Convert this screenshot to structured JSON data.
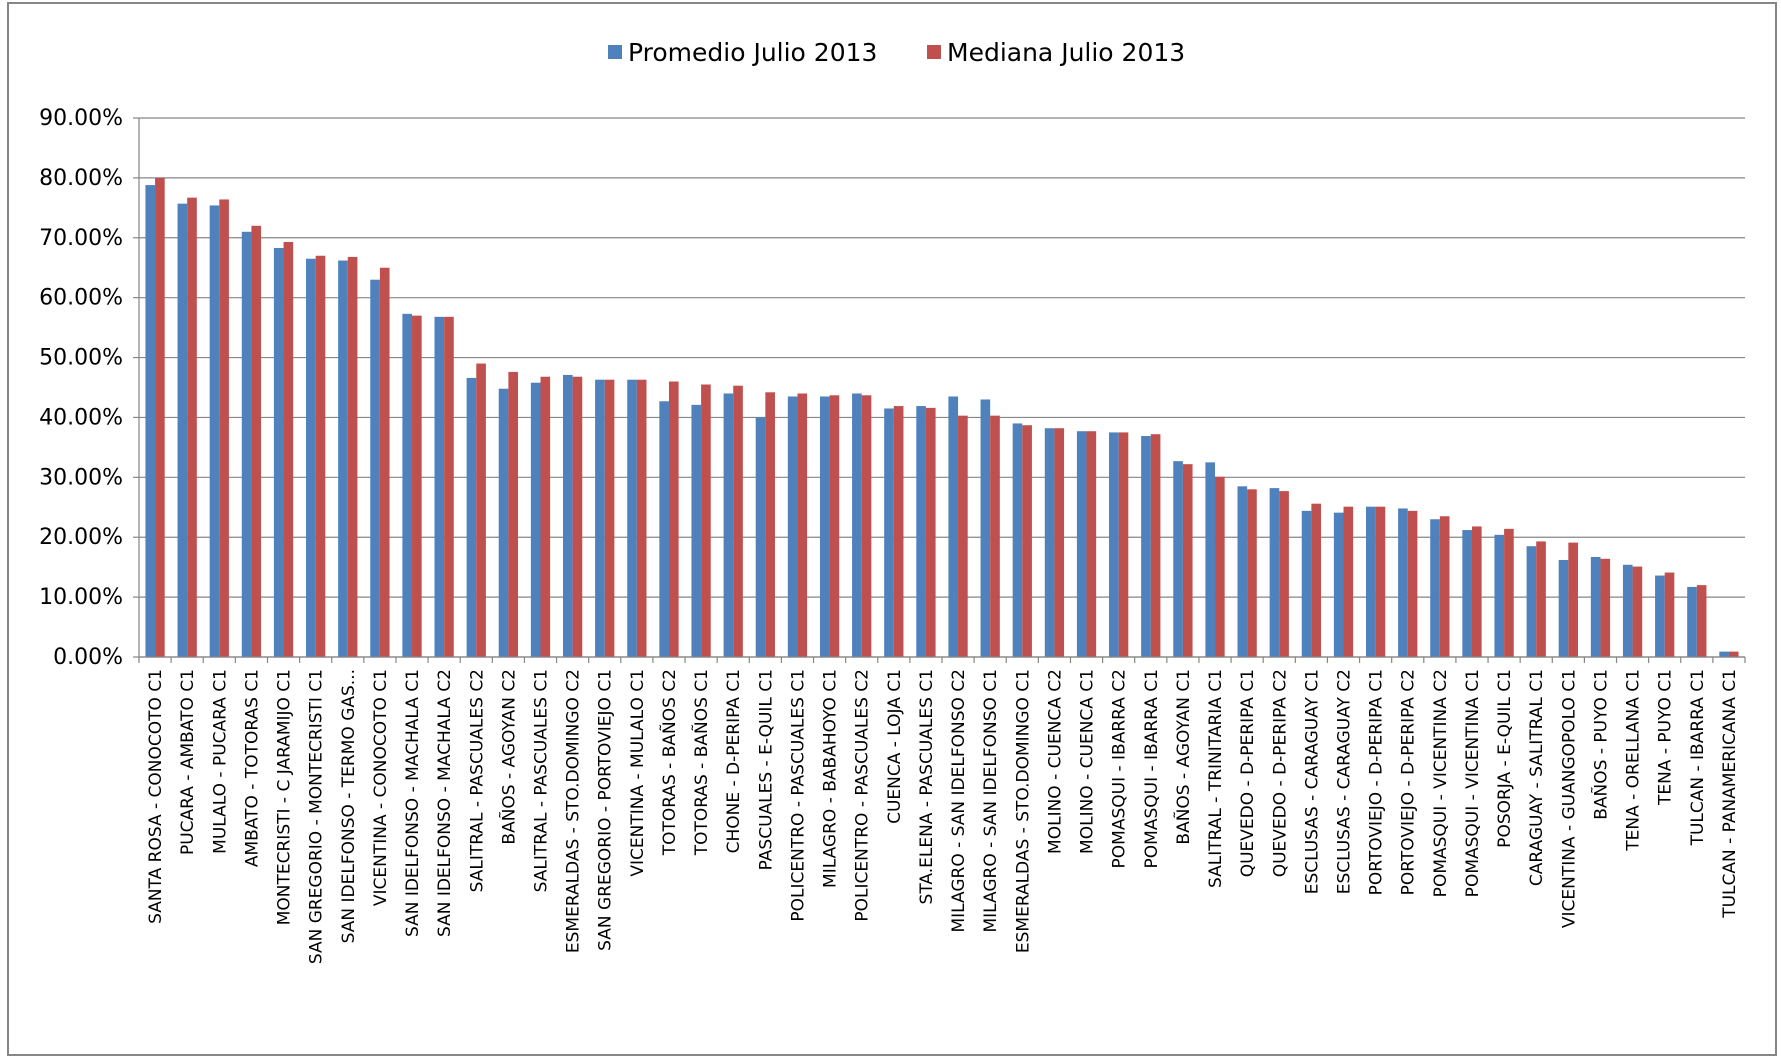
{
  "chart_data": {
    "type": "bar",
    "categories": [
      "SANTA ROSA  - CONOCOTO C1",
      "PUCARA - AMBATO C1",
      "MULALO - PUCARA C1",
      "AMBATO - TOTORAS C1",
      "MONTECRISTI - C JARAMIJO C1",
      "SAN GREGORIO - MONTECRISTI C1",
      "SAN IDELFONSO  - TERMO GAS...",
      "VICENTINA - CONOCOTO C1",
      "SAN IDELFONSO  - MACHALA C1",
      "SAN IDELFONSO  - MACHALA C2",
      "SALITRAL - PASCUALES C2",
      "BAÑOS - AGOYAN C2",
      "SALITRAL - PASCUALES C1",
      "ESMERALDAS - STO.DOMINGO C2",
      "SAN GREGORIO - PORTOVIEJO C1",
      "VICENTINA - MULALO C1",
      "TOTORAS - BAÑOS C2",
      "TOTORAS - BAÑOS C1",
      "CHONE - D-PERIPA C1",
      "PASCUALES - E-QUIL C1",
      "POLICENTRO - PASCUALES C1",
      "MILAGRO - BABAHOYO C1",
      "POLICENTRO - PASCUALES C2",
      "CUENCA - LOJA C1",
      "STA.ELENA - PASCUALES C1",
      "MILAGRO - SAN IDELFONSO C2",
      "MILAGRO - SAN IDELFONSO C1",
      "ESMERALDAS - STO.DOMINGO C1",
      "MOLINO - CUENCA C2",
      "MOLINO - CUENCA C1",
      "POMASQUI  - IBARRA C2",
      "POMASQUI  - IBARRA C1",
      "BAÑOS - AGOYAN C1",
      "SALITRAL - TRINITARIA C1",
      "QUEVEDO - D-PERIPA C1",
      "QUEVEDO - D-PERIPA C2",
      "ESCLUSAS - CARAGUAY C1",
      "ESCLUSAS - CARAGUAY C2",
      "PORTOVIEJO - D-PERIPA C1",
      "PORTOVIEJO - D-PERIPA C2",
      "POMASQUI  - VICENTINA C2",
      "POMASQUI  - VICENTINA C1",
      "POSORJA - E-QUIL C1",
      "CARAGUAY - SALITRAL C1",
      "VICENTINA - GUANGOPOLO C1",
      "BAÑOS - PUYO C1",
      "TENA - ORELLANA C1",
      "TENA - PUYO C1",
      "TULCAN - IBARRA C1",
      "TULCAN - PANAMERICANA C1"
    ],
    "series": [
      {
        "name": "Promedio Julio 2013",
        "color": "#4f81bd",
        "values": [
          78.8,
          75.7,
          75.4,
          71.0,
          68.3,
          66.5,
          66.2,
          63.0,
          57.3,
          56.8,
          46.6,
          44.8,
          45.8,
          47.1,
          46.3,
          46.3,
          42.7,
          42.1,
          44.0,
          40.0,
          43.5,
          43.5,
          44.0,
          41.5,
          41.9,
          43.5,
          43.0,
          39.0,
          38.2,
          37.7,
          37.5,
          36.9,
          32.7,
          32.5,
          28.5,
          28.2,
          24.4,
          24.1,
          25.1,
          24.8,
          23.0,
          21.2,
          20.4,
          18.5,
          16.2,
          16.7,
          15.4,
          13.6,
          11.7,
          0.9
        ]
      },
      {
        "name": "Mediana Julio 2013",
        "color": "#c0504d",
        "values": [
          80.0,
          76.7,
          76.4,
          72.0,
          69.3,
          67.0,
          66.8,
          65.0,
          57.0,
          56.8,
          49.0,
          47.6,
          46.8,
          46.8,
          46.3,
          46.3,
          46.0,
          45.5,
          45.3,
          44.2,
          44.0,
          43.7,
          43.7,
          41.9,
          41.6,
          40.3,
          40.3,
          38.7,
          38.2,
          37.7,
          37.5,
          37.2,
          32.2,
          30.1,
          28.0,
          27.7,
          25.6,
          25.1,
          25.1,
          24.4,
          23.5,
          21.8,
          21.4,
          19.3,
          19.1,
          16.4,
          15.1,
          14.1,
          12.0,
          0.9
        ]
      }
    ],
    "ylim": [
      0,
      90
    ],
    "yticks": [
      {
        "value": 0,
        "label": "0.00%"
      },
      {
        "value": 10,
        "label": "10.00%"
      },
      {
        "value": 20,
        "label": "20.00%"
      },
      {
        "value": 30,
        "label": "30.00%"
      },
      {
        "value": 40,
        "label": "40.00%"
      },
      {
        "value": 50,
        "label": "50.00%"
      },
      {
        "value": 60,
        "label": "60.00%"
      },
      {
        "value": 70,
        "label": "70.00%"
      },
      {
        "value": 80,
        "label": "80.00%"
      },
      {
        "value": 90,
        "label": "90.00%"
      }
    ],
    "grid": true,
    "legend": "top"
  }
}
